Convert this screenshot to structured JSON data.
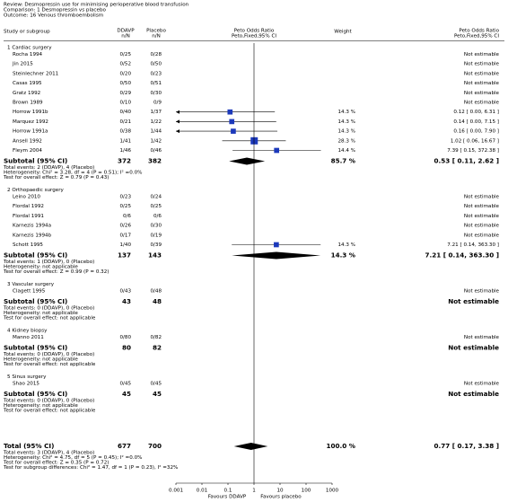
{
  "header": {
    "review": "Review:   Desmopressin use for minimising perioperative blood transfusion",
    "comparison": "Comparison:   1 Desmopressin vs placebo",
    "outcome": "Outcome:   16 Venous thromboembolism"
  },
  "chart_data": {
    "type": "forest",
    "columns": {
      "study": "Study or subgroup",
      "group1": [
        "DDAVP",
        "n/N"
      ],
      "group2": [
        "Placebo",
        "n/N"
      ],
      "plot": [
        "Peto Odds Ratio",
        "Peto,Fixed,95% CI"
      ],
      "weight": "Weight",
      "effect": [
        "Peto Odds Ratio",
        "Peto,Fixed,95% CI"
      ]
    },
    "groups": [
      {
        "label": "1 Cardiac surgery",
        "studies": [
          {
            "name": "Rocha 1994",
            "e1": "0/25",
            "e2": "0/28",
            "effect_label": "Not estimable"
          },
          {
            "name": "Jin 2015",
            "e1": "0/52",
            "e2": "0/50",
            "effect_label": "Not estimable"
          },
          {
            "name": "Steinlechner 2011",
            "e1": "0/20",
            "e2": "0/23",
            "effect_label": "Not estimable"
          },
          {
            "name": "Casas 1995",
            "e1": "0/50",
            "e2": "0/51",
            "effect_label": "Not estimable"
          },
          {
            "name": "Gratz 1992",
            "e1": "0/29",
            "e2": "0/30",
            "effect_label": "Not estimable"
          },
          {
            "name": "Brown 1989",
            "e1": "0/10",
            "e2": "0/9",
            "effect_label": "Not estimable"
          },
          {
            "name": "Horrow 1991b",
            "e1": "0/40",
            "e2": "1/37",
            "weight": 14.3,
            "weight_label": "14.3 %",
            "or": 0.12,
            "ci": [
              0.0,
              6.31
            ],
            "effect_label": "0.12 [ 0.00, 6.31 ]"
          },
          {
            "name": "Marquez 1992",
            "e1": "0/21",
            "e2": "1/22",
            "weight": 14.3,
            "weight_label": "14.3 %",
            "or": 0.14,
            "ci": [
              0.0,
              7.15
            ],
            "effect_label": "0.14 [ 0.00, 7.15 ]"
          },
          {
            "name": "Horrow 1991a",
            "e1": "0/38",
            "e2": "1/44",
            "weight": 14.3,
            "weight_label": "14.3 %",
            "or": 0.16,
            "ci": [
              0.0,
              7.9
            ],
            "effect_label": "0.16 [ 0.00, 7.90 ]"
          },
          {
            "name": "Ansell 1992",
            "e1": "1/41",
            "e2": "1/42",
            "weight": 28.3,
            "weight_label": "28.3 %",
            "or": 1.02,
            "ci": [
              0.06,
              16.67
            ],
            "effect_label": "1.02 [ 0.06, 16.67 ]"
          },
          {
            "name": "Fleym 2004",
            "e1": "1/46",
            "e2": "0/46",
            "weight": 14.4,
            "weight_label": "14.4 %",
            "or": 7.39,
            "ci": [
              0.15,
              372.38
            ],
            "effect_label": "7.39 [ 0.15, 372.38 ]"
          }
        ],
        "subtotal": {
          "label": "Subtotal (95% CI)",
          "n1": 372,
          "n2": 382,
          "weight": 85.7,
          "weight_label": "85.7 %",
          "or": 0.53,
          "ci": [
            0.11,
            2.62
          ],
          "effect_label": "0.53 [ 0.11, 2.62 ]"
        },
        "notes": [
          "Total events: 2 (DDAVP), 4 (Placebo)",
          "Heterogeneity: Chi² = 3.28, df = 4 (P = 0.51); I² =0.0%",
          "Test for overall effect: Z = 0.79 (P = 0.43)"
        ]
      },
      {
        "label": "2 Orthopaedic surgery",
        "studies": [
          {
            "name": "Leino 2010",
            "e1": "0/23",
            "e2": "0/24",
            "effect_label": "Not estimable"
          },
          {
            "name": "Flordal 1992",
            "e1": "0/25",
            "e2": "0/25",
            "effect_label": "Not estimable"
          },
          {
            "name": "Flordal 1991",
            "e1": "0/6",
            "e2": "0/6",
            "effect_label": "Not estimable"
          },
          {
            "name": "Karnezis 1994a",
            "e1": "0/26",
            "e2": "0/30",
            "effect_label": "Not estimable"
          },
          {
            "name": "Karnezis 1994b",
            "e1": "0/17",
            "e2": "0/19",
            "effect_label": "Not estimable"
          },
          {
            "name": "Schott 1995",
            "e1": "1/40",
            "e2": "0/39",
            "weight": 14.3,
            "weight_label": "14.3 %",
            "or": 7.21,
            "ci": [
              0.14,
              363.3
            ],
            "effect_label": "7.21 [ 0.14, 363.30 ]"
          }
        ],
        "subtotal": {
          "label": "Subtotal (95% CI)",
          "n1": 137,
          "n2": 143,
          "weight": 14.3,
          "weight_label": "14.3 %",
          "or": 7.21,
          "ci": [
            0.14,
            363.3
          ],
          "effect_label": "7.21 [ 0.14, 363.30 ]"
        },
        "notes": [
          "Total events: 1 (DDAVP), 0 (Placebo)",
          "Heterogeneity: not applicable",
          "Test for overall effect: Z = 0.99 (P = 0.32)"
        ]
      },
      {
        "label": "3 Vascular surgery",
        "studies": [
          {
            "name": "Clagett 1995",
            "e1": "0/43",
            "e2": "0/48",
            "effect_label": "Not estimable"
          }
        ],
        "subtotal": {
          "label": "Subtotal (95% CI)",
          "n1": 43,
          "n2": 48,
          "effect_label": "Not estimable"
        },
        "notes": [
          "Total events: 0 (DDAVP), 0 (Placebo)",
          "Heterogeneity: not applicable",
          "Test for overall effect: not applicable"
        ]
      },
      {
        "label": "4 Kidney biopsy",
        "studies": [
          {
            "name": "Manno 2011",
            "e1": "0/80",
            "e2": "0/82",
            "effect_label": "Not estimable"
          }
        ],
        "subtotal": {
          "label": "Subtotal (95% CI)",
          "n1": 80,
          "n2": 82,
          "effect_label": "Not estimable"
        },
        "notes": [
          "Total events: 0 (DDAVP), 0 (Placebo)",
          "Heterogeneity: not applicable",
          "Test for overall effect: not applicable"
        ]
      },
      {
        "label": "5 Sinus surgery",
        "studies": [
          {
            "name": "Shao 2015",
            "e1": "0/45",
            "e2": "0/45",
            "effect_label": "Not estimable"
          }
        ],
        "subtotal": {
          "label": "Subtotal (95% CI)",
          "n1": 45,
          "n2": 45,
          "effect_label": "Not estimable"
        },
        "notes": [
          "Total events: 0 (DDAVP), 0 (Placebo)",
          "Heterogeneity: not applicable",
          "Test for overall effect: not applicable"
        ]
      }
    ],
    "total": {
      "label": "Total (95% CI)",
      "n1": 677,
      "n2": 700,
      "weight": 100.0,
      "weight_label": "100.0 %",
      "or": 0.77,
      "ci": [
        0.17,
        3.38
      ],
      "effect_label": "0.77 [ 0.17, 3.38 ]"
    },
    "total_notes": [
      "Total events: 3 (DDAVP), 4 (Placebo)",
      "Heterogeneity: Chi² = 4.75, df = 5 (P = 0.45); I² =0.0%",
      "Test for overall effect: Z = 0.35 (P = 0.72)",
      "Test for subgroup differences: Chi² = 1.47, df = 1 (P = 0.23), I² =32%"
    ],
    "xlim": [
      0.001,
      1000
    ],
    "xticks": [
      0.001,
      0.01,
      0.1,
      1,
      10,
      100,
      1000
    ],
    "log_x": true,
    "favours": [
      "Favours DDAVP",
      "Favours placebo"
    ],
    "square_color": "#1c39bb",
    "diamond_color": "#000000"
  }
}
